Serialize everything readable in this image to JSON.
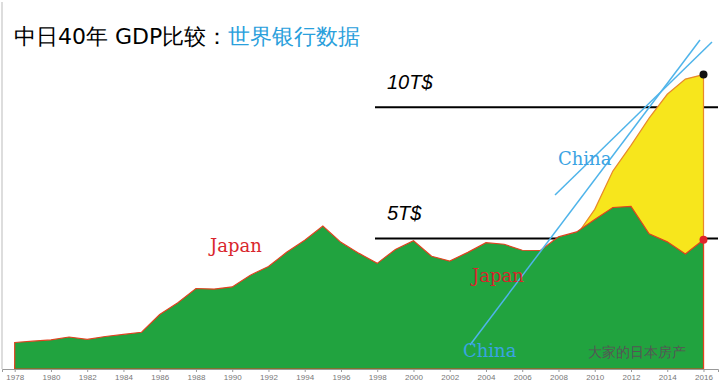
{
  "chart_data": {
    "type": "area",
    "title": "中日40年 GDP比较：",
    "subtitle": "世界银行数据",
    "x": [
      1978,
      1979,
      1980,
      1981,
      1982,
      1983,
      1984,
      1985,
      1986,
      1987,
      1988,
      1989,
      1990,
      1991,
      1992,
      1993,
      1994,
      1995,
      1996,
      1997,
      1998,
      1999,
      2000,
      2001,
      2002,
      2003,
      2004,
      2005,
      2006,
      2007,
      2008,
      2009,
      2010,
      2011,
      2012,
      2013,
      2014,
      2015,
      2016
    ],
    "series": [
      {
        "name": "Japan",
        "color": "#21a33f",
        "values": [
          1.01,
          1.06,
          1.11,
          1.22,
          1.13,
          1.24,
          1.32,
          1.4,
          2.08,
          2.53,
          3.07,
          3.05,
          3.13,
          3.58,
          3.91,
          4.45,
          4.91,
          5.45,
          4.83,
          4.41,
          4.03,
          4.56,
          4.89,
          4.3,
          4.12,
          4.45,
          4.82,
          4.76,
          4.53,
          4.52,
          5.04,
          5.23,
          5.7,
          6.16,
          6.2,
          5.16,
          4.85,
          4.39,
          4.93
        ]
      },
      {
        "name": "China",
        "color": "#f7e61c",
        "values": [
          0.15,
          0.18,
          0.19,
          0.2,
          0.21,
          0.23,
          0.26,
          0.31,
          0.3,
          0.27,
          0.31,
          0.35,
          0.36,
          0.38,
          0.43,
          0.44,
          0.56,
          0.73,
          0.86,
          0.96,
          1.03,
          1.09,
          1.21,
          1.34,
          1.47,
          1.66,
          1.96,
          2.29,
          2.75,
          3.55,
          4.59,
          5.1,
          6.09,
          7.55,
          8.53,
          9.57,
          10.48,
          11.06,
          11.23
        ]
      }
    ],
    "xlim": [
      1977.3,
      2016.8
    ],
    "ylim": [
      0,
      14
    ],
    "xticks": [
      1978,
      1980,
      1982,
      1984,
      1986,
      1988,
      1990,
      1992,
      1994,
      1996,
      1998,
      2000,
      2002,
      2004,
      2006,
      2008,
      2010,
      2012,
      2014,
      2016
    ],
    "yticks": [
      {
        "value": 5,
        "label": "5T$"
      },
      {
        "value": 10,
        "label": "10T$"
      }
    ],
    "grid": true,
    "annotations": [
      {
        "text": "Japan",
        "color": "#d9262c"
      },
      {
        "text": "Japan",
        "color": "#d9262c"
      },
      {
        "text": "China",
        "color": "#3aa3e3"
      },
      {
        "text": "China",
        "color": "#3aa3e3"
      },
      {
        "text": "大家的日本房产",
        "color": "#555555"
      }
    ]
  }
}
